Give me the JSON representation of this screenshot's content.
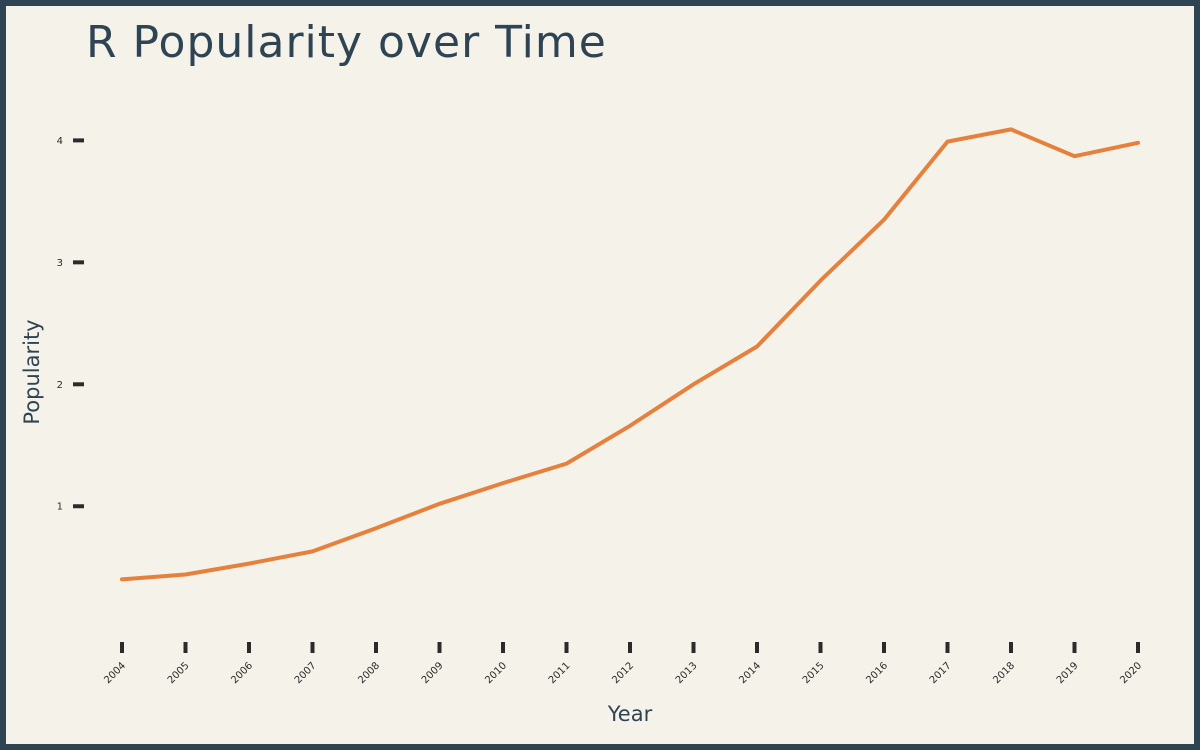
{
  "chart_data": {
    "type": "line",
    "title": "R Popularity over Time",
    "xlabel": "Year",
    "ylabel": "Popularity",
    "x": [
      "2004",
      "2005",
      "2006",
      "2007",
      "2008",
      "2009",
      "2010",
      "2011",
      "2012",
      "2013",
      "2014",
      "2015",
      "2016",
      "2017",
      "2018",
      "2019",
      "2020"
    ],
    "series": [
      {
        "values": [
          0.4,
          0.44,
          0.53,
          0.63,
          0.82,
          1.02,
          1.19,
          1.35,
          1.66,
          2.0,
          2.31,
          2.85,
          3.35,
          3.99,
          4.09,
          3.87,
          3.98
        ],
        "color": "#e5803d"
      }
    ],
    "yticks": [
      1,
      2,
      3,
      4
    ],
    "ylim": [
      0.1,
      4.2
    ],
    "grid": false,
    "colors": {
      "background": "#f5f2ea",
      "border": "#2f4452",
      "line": "#e5803d",
      "text": "#2f4452"
    }
  }
}
